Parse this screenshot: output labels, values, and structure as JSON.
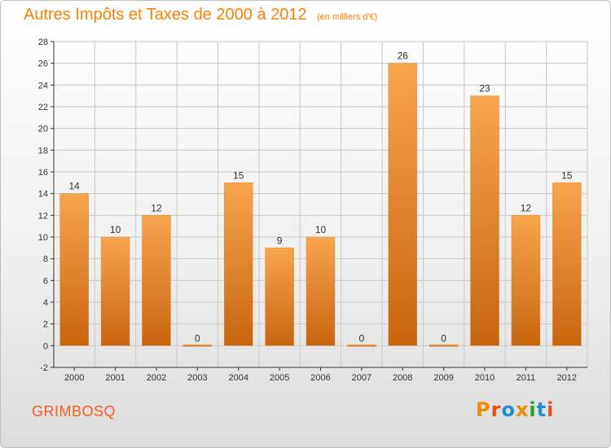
{
  "header": {
    "title": "Autres Impôts et Taxes de 2000 à 2012",
    "subtitle": "(en milliers d'€)"
  },
  "footer": {
    "location": "GRIMBOSQ",
    "brand": "Proxiti",
    "brand_colors": [
      "#f08c00",
      "#e84c1e",
      "#1e90d6",
      "#f08c00",
      "#2aa02a",
      "#1e90d6",
      "#e84c1e"
    ]
  },
  "chart_data": {
    "type": "bar",
    "categories": [
      "2000",
      "2001",
      "2002",
      "2003",
      "2004",
      "2005",
      "2006",
      "2007",
      "2008",
      "2009",
      "2010",
      "2011",
      "2012"
    ],
    "values": [
      14,
      10,
      12,
      0,
      15,
      9,
      10,
      0,
      26,
      0,
      23,
      12,
      15
    ],
    "title": "Autres Impôts et Taxes de 2000 à 2012",
    "subtitle": "(en milliers d'€)",
    "xlabel": "",
    "ylabel": "",
    "ylim": [
      -2,
      28
    ],
    "yticks": [
      -2,
      0,
      2,
      4,
      6,
      8,
      10,
      12,
      14,
      16,
      18,
      20,
      22,
      24,
      26,
      28
    ],
    "grid": true,
    "data_labels": true,
    "bar_color": "#f08c28",
    "bar_color_dark": "#c8650f",
    "grid_color": "#c8c8c8",
    "axis_color": "#333333",
    "legend": "none"
  }
}
